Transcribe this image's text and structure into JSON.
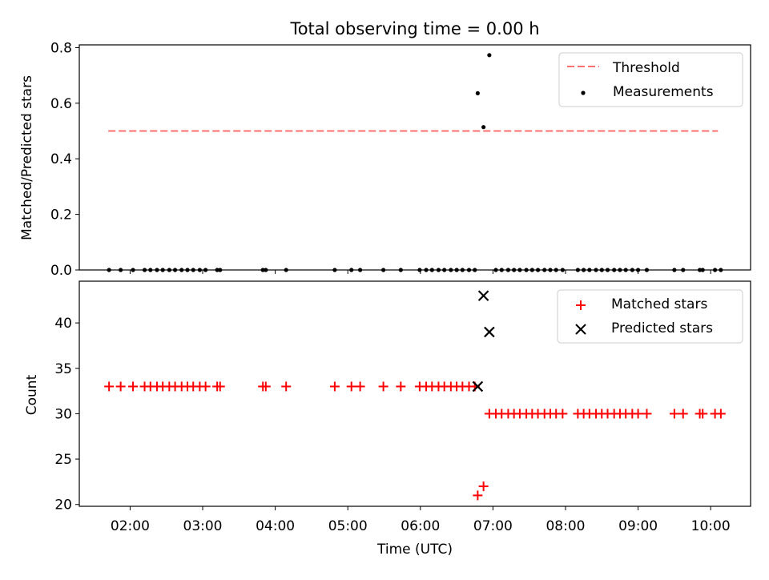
{
  "chart_data": [
    {
      "type": "scatter",
      "title": "Total observing time = 0.00 h",
      "xlabel": "",
      "ylabel": "Matched/Predicted stars",
      "xlim": [
        1.3,
        10.55
      ],
      "ylim": [
        0,
        0.81
      ],
      "y_ticks": [
        0.0,
        0.2,
        0.4,
        0.6,
        0.8
      ],
      "y_tick_labels": [
        "0.0",
        "0.2",
        "0.4",
        "0.6",
        "0.8"
      ],
      "grid": false,
      "legend_position": "top-right",
      "threshold": {
        "name": "Threshold",
        "value": 0.5,
        "x_range": [
          1.7,
          10.1
        ],
        "color": "#ff7070",
        "style": "dashed"
      },
      "series": [
        {
          "name": "Measurements",
          "marker": "dot",
          "color": "#000000",
          "points": [
            [
              1.71,
              0
            ],
            [
              1.87,
              0
            ],
            [
              2.04,
              0
            ],
            [
              2.2,
              0
            ],
            [
              2.28,
              0
            ],
            [
              2.37,
              0
            ],
            [
              2.45,
              0
            ],
            [
              2.54,
              0
            ],
            [
              2.62,
              0
            ],
            [
              2.71,
              0
            ],
            [
              2.79,
              0
            ],
            [
              2.87,
              0
            ],
            [
              2.96,
              0
            ],
            [
              3.04,
              0
            ],
            [
              3.2,
              0
            ],
            [
              3.24,
              0
            ],
            [
              3.83,
              0
            ],
            [
              3.87,
              0
            ],
            [
              4.15,
              0
            ],
            [
              4.82,
              0
            ],
            [
              5.05,
              0
            ],
            [
              5.17,
              0
            ],
            [
              5.49,
              0
            ],
            [
              5.73,
              0
            ],
            [
              5.99,
              0
            ],
            [
              6.08,
              0
            ],
            [
              6.16,
              0
            ],
            [
              6.25,
              0
            ],
            [
              6.33,
              0
            ],
            [
              6.42,
              0
            ],
            [
              6.5,
              0
            ],
            [
              6.58,
              0
            ],
            [
              6.67,
              0
            ],
            [
              6.75,
              0
            ],
            [
              6.79,
              0.636
            ],
            [
              6.87,
              0.514
            ],
            [
              6.95,
              0.773
            ],
            [
              7.04,
              0
            ],
            [
              7.12,
              0
            ],
            [
              7.21,
              0
            ],
            [
              7.29,
              0
            ],
            [
              7.37,
              0
            ],
            [
              7.46,
              0
            ],
            [
              7.54,
              0
            ],
            [
              7.62,
              0
            ],
            [
              7.71,
              0
            ],
            [
              7.79,
              0
            ],
            [
              7.87,
              0
            ],
            [
              7.96,
              0
            ],
            [
              8.17,
              0
            ],
            [
              8.25,
              0
            ],
            [
              8.33,
              0
            ],
            [
              8.42,
              0
            ],
            [
              8.5,
              0
            ],
            [
              8.58,
              0
            ],
            [
              8.67,
              0
            ],
            [
              8.75,
              0
            ],
            [
              8.83,
              0
            ],
            [
              8.92,
              0
            ],
            [
              9.0,
              0
            ],
            [
              9.12,
              0
            ],
            [
              9.5,
              0
            ],
            [
              9.62,
              0
            ],
            [
              9.85,
              0
            ],
            [
              9.89,
              0
            ],
            [
              10.06,
              0
            ],
            [
              10.14,
              0
            ]
          ]
        }
      ]
    },
    {
      "type": "scatter",
      "title": "",
      "xlabel": "Time (UTC)",
      "ylabel": "Count",
      "xlim": [
        1.3,
        10.55
      ],
      "ylim": [
        19.8,
        44.6
      ],
      "x_ticks": [
        2,
        3,
        4,
        5,
        6,
        7,
        8,
        9,
        10
      ],
      "x_tick_labels": [
        "02:00",
        "03:00",
        "04:00",
        "05:00",
        "06:00",
        "07:00",
        "08:00",
        "09:00",
        "10:00"
      ],
      "y_ticks": [
        20,
        25,
        30,
        35,
        40
      ],
      "y_tick_labels": [
        "20",
        "25",
        "30",
        "35",
        "40"
      ],
      "grid": false,
      "legend_position": "top-right",
      "series": [
        {
          "name": "Matched stars",
          "marker": "plus",
          "color": "#ff0000",
          "points": [
            [
              1.71,
              33
            ],
            [
              1.87,
              33
            ],
            [
              2.04,
              33
            ],
            [
              2.2,
              33
            ],
            [
              2.28,
              33
            ],
            [
              2.37,
              33
            ],
            [
              2.45,
              33
            ],
            [
              2.54,
              33
            ],
            [
              2.62,
              33
            ],
            [
              2.71,
              33
            ],
            [
              2.79,
              33
            ],
            [
              2.87,
              33
            ],
            [
              2.96,
              33
            ],
            [
              3.04,
              33
            ],
            [
              3.2,
              33
            ],
            [
              3.24,
              33
            ],
            [
              3.83,
              33
            ],
            [
              3.87,
              33
            ],
            [
              4.15,
              33
            ],
            [
              4.82,
              33
            ],
            [
              5.05,
              33
            ],
            [
              5.17,
              33
            ],
            [
              5.49,
              33
            ],
            [
              5.73,
              33
            ],
            [
              5.99,
              33
            ],
            [
              6.08,
              33
            ],
            [
              6.16,
              33
            ],
            [
              6.25,
              33
            ],
            [
              6.33,
              33
            ],
            [
              6.42,
              33
            ],
            [
              6.5,
              33
            ],
            [
              6.58,
              33
            ],
            [
              6.67,
              33
            ],
            [
              6.75,
              33
            ],
            [
              6.79,
              21
            ],
            [
              6.87,
              22
            ],
            [
              6.95,
              30
            ],
            [
              7.04,
              30
            ],
            [
              7.12,
              30
            ],
            [
              7.21,
              30
            ],
            [
              7.29,
              30
            ],
            [
              7.37,
              30
            ],
            [
              7.46,
              30
            ],
            [
              7.54,
              30
            ],
            [
              7.62,
              30
            ],
            [
              7.71,
              30
            ],
            [
              7.79,
              30
            ],
            [
              7.87,
              30
            ],
            [
              7.96,
              30
            ],
            [
              8.17,
              30
            ],
            [
              8.25,
              30
            ],
            [
              8.33,
              30
            ],
            [
              8.42,
              30
            ],
            [
              8.5,
              30
            ],
            [
              8.58,
              30
            ],
            [
              8.67,
              30
            ],
            [
              8.75,
              30
            ],
            [
              8.83,
              30
            ],
            [
              8.92,
              30
            ],
            [
              9.0,
              30
            ],
            [
              9.12,
              30
            ],
            [
              9.5,
              30
            ],
            [
              9.62,
              30
            ],
            [
              9.85,
              30
            ],
            [
              9.89,
              30
            ],
            [
              10.06,
              30
            ],
            [
              10.14,
              30
            ]
          ]
        },
        {
          "name": "Predicted stars",
          "marker": "x",
          "color": "#000000",
          "points": [
            [
              6.79,
              33
            ],
            [
              6.87,
              43
            ],
            [
              6.95,
              39
            ]
          ]
        }
      ]
    }
  ]
}
